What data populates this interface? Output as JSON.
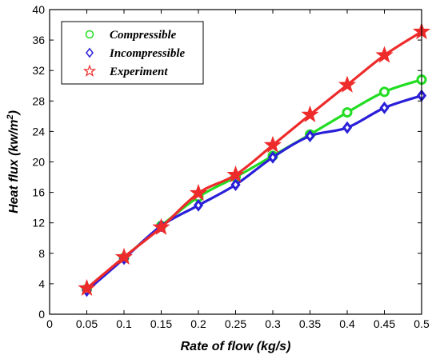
{
  "chart_data": {
    "type": "line",
    "xlabel": "Rate of flow (kg/s)",
    "ylabel_main": "Heat flux (kw/m",
    "ylabel_sup": "2",
    "ylabel_end": ")",
    "xlim": [
      0,
      0.5
    ],
    "ylim": [
      0,
      40
    ],
    "x_ticks": [
      0,
      0.05,
      0.1,
      0.15,
      0.2,
      0.25,
      0.3,
      0.35,
      0.4,
      0.45,
      0.5
    ],
    "x_tick_labels": [
      "0",
      "0.05",
      "0.1",
      "0.15",
      "0.2",
      "0.25",
      "0.3",
      "0.35",
      "0.4",
      "0.45",
      "0.5"
    ],
    "y_ticks": [
      0,
      4,
      8,
      12,
      16,
      20,
      24,
      28,
      32,
      36,
      40
    ],
    "y_tick_labels": [
      "0",
      "4",
      "8",
      "12",
      "16",
      "20",
      "24",
      "28",
      "32",
      "36",
      "40"
    ],
    "grid": false,
    "legend_position": "top-left",
    "x": [
      0.05,
      0.1,
      0.15,
      0.2,
      0.25,
      0.3,
      0.35,
      0.4,
      0.45,
      0.5
    ],
    "series": [
      {
        "name": "Compressible",
        "marker": "circle",
        "color": "#22dd22",
        "values": [
          3.3,
          7.4,
          11.6,
          15.4,
          18.0,
          20.8,
          23.6,
          26.5,
          29.2,
          30.8
        ]
      },
      {
        "name": "Incompressible",
        "marker": "diamond",
        "color": "#2a1fd8",
        "values": [
          3.1,
          7.3,
          11.6,
          14.3,
          17.0,
          20.6,
          23.4,
          24.5,
          27.1,
          28.7
        ]
      },
      {
        "name": "Experiment",
        "marker": "star",
        "color": "#ee2b2b",
        "values": [
          3.4,
          7.5,
          11.4,
          15.9,
          18.3,
          22.2,
          26.2,
          30.1,
          34.0,
          37.1
        ]
      }
    ]
  }
}
